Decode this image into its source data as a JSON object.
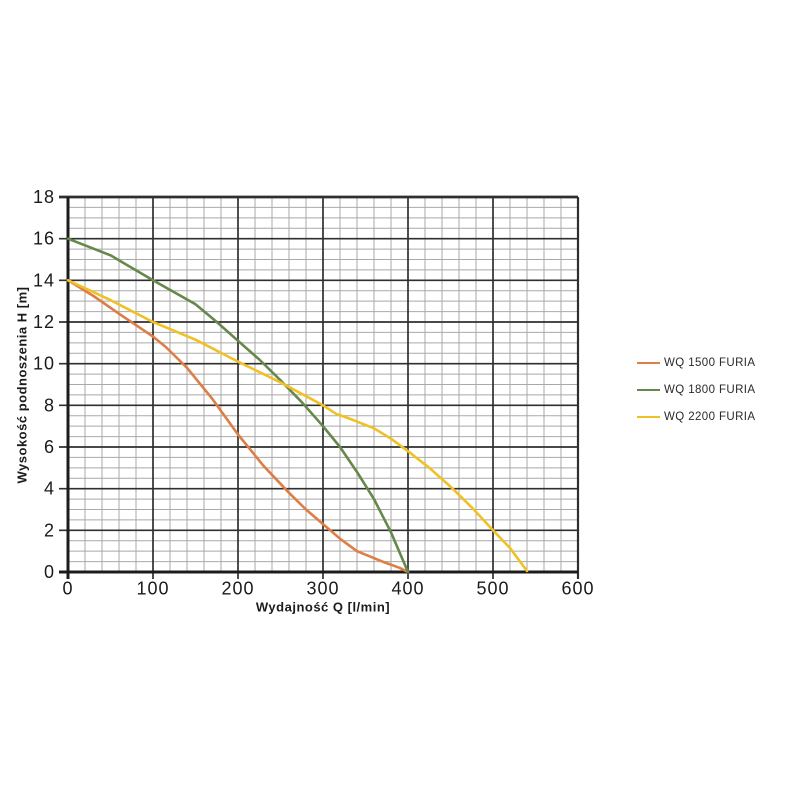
{
  "chart_data": {
    "type": "line",
    "title": "",
    "xlabel": "Wydajność Q [l/min]",
    "ylabel": "Wysokość podnoszenia H [m]",
    "xlim": [
      0,
      600
    ],
    "ylim": [
      0,
      18
    ],
    "x_ticks": [
      0,
      100,
      200,
      300,
      400,
      500,
      600
    ],
    "y_ticks": [
      0,
      2,
      4,
      6,
      8,
      10,
      12,
      14,
      16,
      18
    ],
    "x_minor_step": 20,
    "y_minor_step": 0.5,
    "grid": "major+minor",
    "legend_position": "right",
    "style": {
      "axis_color": "#1c1c1c",
      "major_grid_color": "#2f2f2f",
      "minor_grid_color": "#a9a9a9",
      "text_color": "#1b1b1b",
      "background": "#ffffff"
    },
    "series": [
      {
        "name": "WQ 1500 FURIA",
        "color": "#DD7E44",
        "points": [
          [
            0,
            14
          ],
          [
            30,
            13.25
          ],
          [
            60,
            12.4
          ],
          [
            100,
            11.3
          ],
          [
            115,
            10.8
          ],
          [
            140,
            9.8
          ],
          [
            170,
            8.3
          ],
          [
            200,
            6.6
          ],
          [
            230,
            5.1
          ],
          [
            260,
            3.8
          ],
          [
            280,
            3.0
          ],
          [
            300,
            2.3
          ],
          [
            320,
            1.6
          ],
          [
            340,
            1.0
          ],
          [
            370,
            0.5
          ],
          [
            390,
            0.2
          ],
          [
            400,
            0
          ]
        ]
      },
      {
        "name": "WQ 1800 FURIA",
        "color": "#65884B",
        "points": [
          [
            0,
            16
          ],
          [
            50,
            15.2
          ],
          [
            100,
            14
          ],
          [
            150,
            12.85
          ],
          [
            175,
            12
          ],
          [
            200,
            11.1
          ],
          [
            225,
            10.2
          ],
          [
            250,
            9.2
          ],
          [
            275,
            8.15
          ],
          [
            300,
            7.0
          ],
          [
            320,
            6.0
          ],
          [
            340,
            4.8
          ],
          [
            360,
            3.5
          ],
          [
            380,
            1.9
          ],
          [
            400,
            0
          ]
        ]
      },
      {
        "name": "WQ 2200 FURIA",
        "color": "#F0C125",
        "points": [
          [
            0,
            14
          ],
          [
            50,
            13.05
          ],
          [
            100,
            12
          ],
          [
            150,
            11.15
          ],
          [
            200,
            10.1
          ],
          [
            250,
            9.1
          ],
          [
            300,
            8.0
          ],
          [
            315,
            7.6
          ],
          [
            335,
            7.3
          ],
          [
            360,
            6.9
          ],
          [
            380,
            6.4
          ],
          [
            400,
            5.8
          ],
          [
            425,
            5.0
          ],
          [
            450,
            4.1
          ],
          [
            475,
            3.1
          ],
          [
            500,
            2.0
          ],
          [
            520,
            1.15
          ],
          [
            540,
            0.05
          ]
        ]
      }
    ]
  }
}
